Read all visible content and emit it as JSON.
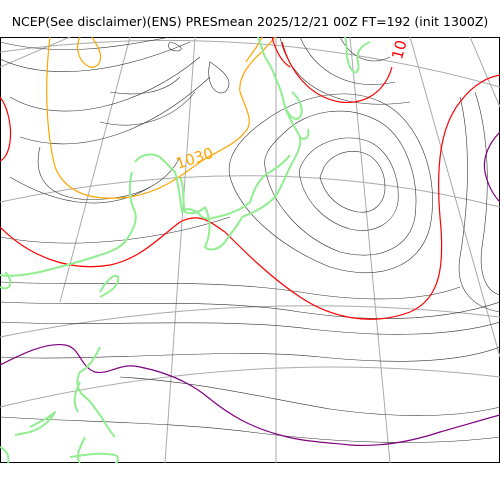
{
  "title": "NCEP(See disclaimer)(ENS) PRESmean 2025/12/21 00Z FT=192 (init 1300Z)",
  "contour_labels": {
    "orange": "1030",
    "red": "10"
  },
  "colors": {
    "isobar": "#333333",
    "isobar_1030": "#ffa500",
    "isobar_1020": "#ff0000",
    "isobar_1010": "#800080",
    "coastline": "#90ee90",
    "graticule": "#aaaaaa"
  }
}
